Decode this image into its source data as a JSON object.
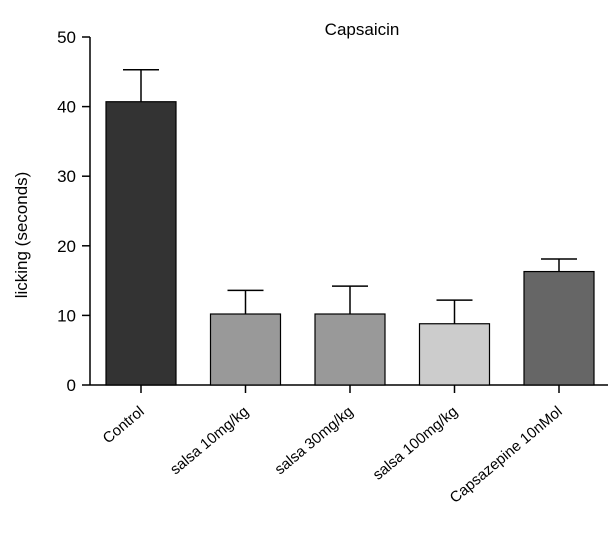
{
  "chart_data": {
    "type": "bar",
    "title": "Capsaicin",
    "ylabel": "licking (seconds)",
    "xlabel": "",
    "ylim": [
      0,
      50
    ],
    "yticks": [
      0,
      10,
      20,
      30,
      40,
      50
    ],
    "categories": [
      "Control",
      "salsa 10mg/kg",
      "salsa 30mg/kg",
      "salsa 100mg/kg",
      "Capsazepine 10nMol"
    ],
    "values": [
      40.7,
      10.2,
      10.2,
      8.8,
      16.3
    ],
    "errors": [
      4.6,
      3.4,
      4.0,
      3.4,
      1.8
    ],
    "colors": [
      "#333333",
      "#999999",
      "#999999",
      "#cccccc",
      "#666666"
    ],
    "grid": false
  }
}
